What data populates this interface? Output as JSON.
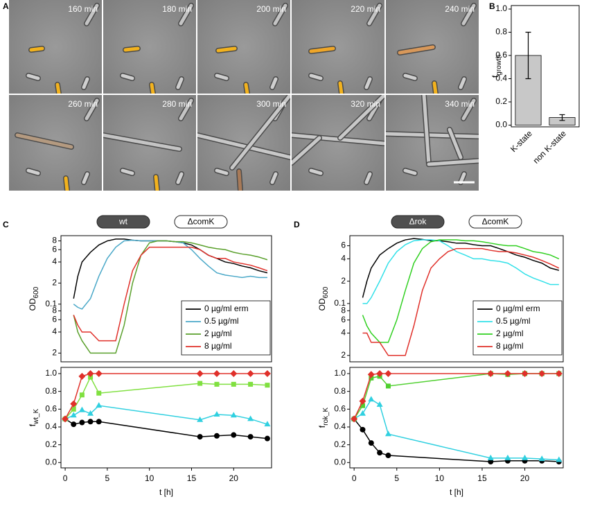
{
  "panel_labels": [
    "A",
    "B",
    "C",
    "D"
  ],
  "micrographs": {
    "time_labels": [
      "160 min",
      "180 min",
      "200 min",
      "220 min",
      "240 min",
      "260 min",
      "280 min",
      "300 min",
      "320 min",
      "340 min"
    ]
  },
  "chart_data": [
    {
      "type": "bar",
      "categories": [
        "K-state",
        "non K-state"
      ],
      "values": [
        0.6,
        0.065
      ],
      "errors": [
        0.2,
        0.025
      ],
      "color": "#c8c8c8",
      "ylabel": {
        "text": "f",
        "sub": "growth"
      },
      "ylim": [
        -0.015,
        1.03
      ],
      "yticks": [
        {
          "value": 0,
          "label": "0.0"
        },
        0.2,
        0.4,
        0.6,
        0.8,
        {
          "value": 1,
          "label": "1.0"
        }
      ]
    },
    {
      "type": "line",
      "strains": [
        "wt",
        "ΔcomK"
      ],
      "yscale": "log",
      "legend": "lower right",
      "ylabel": {
        "text": "OD",
        "sub": "600"
      },
      "xlim": [
        -0.5,
        24.5
      ],
      "ylim": [
        0.015,
        0.95
      ],
      "yticks": [
        {
          "value": 0.02,
          "label": "2"
        },
        {
          "value": 0.04,
          "label": "4"
        },
        {
          "value": 0.06,
          "label": "6"
        },
        {
          "value": 0.08,
          "label": "8"
        },
        0.1,
        {
          "value": 0.2,
          "label": "2"
        },
        {
          "value": 0.4,
          "label": "4"
        },
        {
          "value": 0.6,
          "label": "6"
        },
        {
          "value": 0.8,
          "label": "8"
        }
      ],
      "x": [
        1,
        1.5,
        2,
        3,
        4,
        5,
        6,
        7,
        8,
        9,
        10,
        11,
        12,
        13,
        14,
        15,
        16,
        17,
        18,
        19,
        20,
        21,
        22,
        23,
        24
      ],
      "series": [
        {
          "name": "0 µg/ml erm",
          "color": "#000000",
          "values": [
            0.12,
            0.25,
            0.4,
            0.55,
            0.7,
            0.8,
            0.85,
            0.85,
            0.82,
            0.8,
            0.8,
            0.8,
            0.8,
            0.78,
            0.75,
            0.7,
            0.6,
            0.5,
            0.45,
            0.4,
            0.38,
            0.35,
            0.33,
            0.3,
            0.28
          ]
        },
        {
          "name": "0.5 µg/ml",
          "color": "#4aa8c8",
          "values": [
            0.1,
            0.09,
            0.085,
            0.12,
            0.25,
            0.45,
            0.65,
            0.8,
            0.82,
            0.8,
            0.8,
            0.8,
            0.8,
            0.78,
            0.75,
            0.6,
            0.45,
            0.35,
            0.28,
            0.26,
            0.25,
            0.24,
            0.25,
            0.24,
            0.24
          ]
        },
        {
          "name": "2 µg/ml",
          "color": "#5aa02c",
          "values": [
            0.07,
            0.04,
            0.03,
            0.02,
            0.02,
            0.02,
            0.02,
            0.05,
            0.2,
            0.5,
            0.75,
            0.8,
            0.8,
            0.78,
            0.78,
            0.75,
            0.7,
            0.65,
            0.62,
            0.6,
            0.55,
            0.52,
            0.5,
            0.47,
            0.43
          ]
        },
        {
          "name": "8 µg/ml",
          "color": "#e0302a",
          "values": [
            0.07,
            0.05,
            0.04,
            0.04,
            0.03,
            0.03,
            0.03,
            0.1,
            0.3,
            0.5,
            0.65,
            0.65,
            0.65,
            0.65,
            0.65,
            0.65,
            0.6,
            0.5,
            0.45,
            0.45,
            0.4,
            0.38,
            0.36,
            0.33,
            0.3
          ]
        }
      ]
    },
    {
      "type": "line",
      "ylabel": {
        "text": "f",
        "sub": "wt_K"
      },
      "xlabel": "t [h]",
      "xlim": [
        -0.5,
        24.5
      ],
      "ylim": [
        -0.06,
        1.07
      ],
      "xticks": [
        0,
        5,
        10,
        15,
        20
      ],
      "yticks": [
        {
          "value": 0,
          "label": "0.0"
        },
        0.2,
        0.4,
        0.6,
        0.8,
        {
          "value": 1,
          "label": "1.0"
        }
      ],
      "x": [
        0,
        1,
        2,
        3,
        4,
        16,
        18,
        20,
        22,
        24
      ],
      "series": [
        {
          "color": "#000000",
          "marker": "circle",
          "values": [
            0.49,
            0.43,
            0.45,
            0.46,
            0.46,
            0.29,
            0.3,
            0.31,
            0.29,
            0.27
          ]
        },
        {
          "color": "#30d0e0",
          "marker": "triangle",
          "values": [
            0.49,
            0.53,
            0.59,
            0.55,
            0.64,
            0.48,
            0.54,
            0.53,
            0.49,
            0.43
          ]
        },
        {
          "color": "#80e040",
          "marker": "square",
          "values": [
            0.49,
            0.6,
            0.76,
            0.96,
            0.78,
            0.89,
            0.88,
            0.88,
            0.88,
            0.87
          ]
        },
        {
          "color": "#e0302a",
          "marker": "diamond",
          "values": [
            0.49,
            0.66,
            0.97,
            1.0,
            1.0,
            1.0,
            1.0,
            1.0,
            1.0,
            1.0
          ]
        }
      ]
    },
    {
      "type": "line",
      "strains": [
        "Δrok",
        "ΔcomK"
      ],
      "yscale": "log",
      "legend": "lower right",
      "ylabel": {
        "text": "OD",
        "sub": "600"
      },
      "xlim": [
        -0.5,
        24.5
      ],
      "ylim": [
        0.0164,
        0.82
      ],
      "yticks": [
        {
          "value": 0.02,
          "label": "2"
        },
        {
          "value": 0.04,
          "label": "4"
        },
        {
          "value": 0.06,
          "label": "6"
        },
        {
          "value": 0.08,
          "label": "8"
        },
        0.1,
        {
          "value": 0.2,
          "label": "2"
        },
        {
          "value": 0.4,
          "label": "4"
        },
        {
          "value": 0.6,
          "label": "6"
        }
      ],
      "x": [
        1,
        1.5,
        2,
        3,
        4,
        5,
        6,
        7,
        8,
        9,
        10,
        11,
        12,
        13,
        14,
        15,
        16,
        17,
        18,
        19,
        20,
        21,
        22,
        23,
        24
      ],
      "series": [
        {
          "name": "0 µg/ml erm",
          "color": "#000000",
          "values": [
            0.12,
            0.2,
            0.3,
            0.45,
            0.55,
            0.65,
            0.72,
            0.75,
            0.73,
            0.7,
            0.7,
            0.68,
            0.65,
            0.65,
            0.62,
            0.6,
            0.6,
            0.55,
            0.5,
            0.45,
            0.42,
            0.38,
            0.35,
            0.3,
            0.28
          ]
        },
        {
          "name": "0.5 µg/ml",
          "color": "#30e0e8",
          "values": [
            0.1,
            0.1,
            0.12,
            0.2,
            0.35,
            0.5,
            0.62,
            0.7,
            0.72,
            0.72,
            0.7,
            0.6,
            0.5,
            0.45,
            0.4,
            0.4,
            0.38,
            0.37,
            0.35,
            0.3,
            0.25,
            0.22,
            0.2,
            0.18,
            0.18
          ]
        },
        {
          "name": "2 µg/ml",
          "color": "#30d020",
          "values": [
            0.07,
            0.05,
            0.04,
            0.03,
            0.03,
            0.06,
            0.15,
            0.35,
            0.55,
            0.68,
            0.72,
            0.72,
            0.72,
            0.7,
            0.7,
            0.68,
            0.65,
            0.62,
            0.6,
            0.6,
            0.55,
            0.5,
            0.48,
            0.45,
            0.4
          ]
        },
        {
          "name": "8 µg/ml",
          "color": "#e0302a",
          "values": [
            0.04,
            0.04,
            0.03,
            0.03,
            0.02,
            0.02,
            0.02,
            0.05,
            0.15,
            0.3,
            0.4,
            0.5,
            0.55,
            0.55,
            0.55,
            0.55,
            0.52,
            0.5,
            0.5,
            0.48,
            0.45,
            0.42,
            0.38,
            0.34,
            0.3
          ]
        }
      ]
    },
    {
      "type": "line",
      "ylabel": {
        "text": "f",
        "sub": "rok_K"
      },
      "xlabel": "t [h]",
      "xlim": [
        -0.5,
        24.5
      ],
      "ylim": [
        -0.06,
        1.07
      ],
      "xticks": [
        0,
        5,
        10,
        15,
        20
      ],
      "yticks": [
        {
          "value": 0,
          "label": "0.0"
        },
        0.2,
        0.4,
        0.6,
        0.8,
        {
          "value": 1,
          "label": "1.0"
        }
      ],
      "x": [
        0,
        1,
        2,
        3,
        4,
        16,
        18,
        20,
        22,
        24
      ],
      "series": [
        {
          "color": "#000000",
          "marker": "circle",
          "values": [
            0.49,
            0.37,
            0.22,
            0.11,
            0.08,
            0.01,
            0.02,
            0.02,
            0.02,
            0.01
          ]
        },
        {
          "color": "#30d0e0",
          "marker": "triangle",
          "values": [
            0.49,
            0.55,
            0.71,
            0.65,
            0.32,
            0.05,
            0.05,
            0.05,
            0.04,
            0.03
          ]
        },
        {
          "color": "#50d030",
          "marker": "square",
          "values": [
            0.49,
            0.64,
            0.95,
            0.97,
            0.86,
            1.0,
            0.99,
            1.0,
            1.0,
            1.0
          ]
        },
        {
          "color": "#e0302a",
          "marker": "diamond",
          "values": [
            0.49,
            0.69,
            0.99,
            1.0,
            1.0,
            1.0,
            1.0,
            1.0,
            1.0,
            1.0
          ]
        }
      ]
    }
  ]
}
